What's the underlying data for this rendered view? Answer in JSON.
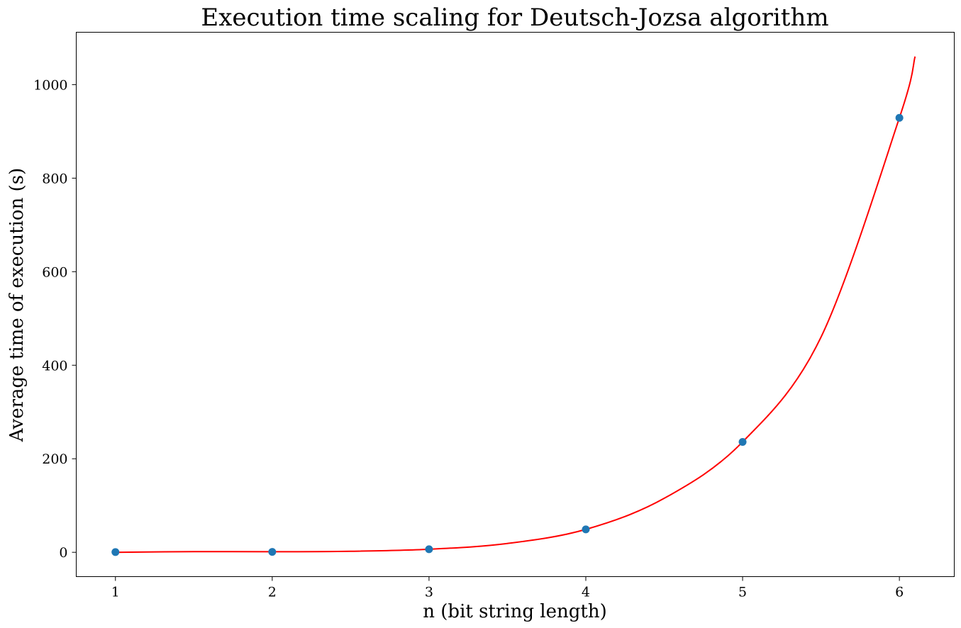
{
  "chart_data": {
    "type": "scatter",
    "title": "Execution time scaling for Deutsch-Jozsa algorithm",
    "xlabel": "n (bit string length)",
    "ylabel": "Average time of execution (s)",
    "xlim": [
      0.75,
      6.35
    ],
    "ylim": [
      -52,
      1112
    ],
    "xticks": [
      1,
      2,
      3,
      4,
      5,
      6
    ],
    "yticks": [
      0,
      200,
      400,
      600,
      800,
      1000
    ],
    "grid": false,
    "legend": "none",
    "series": [
      {
        "kind": "scatter",
        "color": "#1f77b4",
        "x": [
          1,
          2,
          3,
          4,
          5,
          6
        ],
        "y": [
          0.5,
          0.8,
          6.5,
          49,
          236,
          929
        ]
      },
      {
        "kind": "fit-line",
        "color": "#ff0000",
        "x": [
          1.0,
          1.5,
          2.0,
          2.5,
          3.0,
          3.5,
          4.0,
          4.5,
          5.0,
          5.5,
          6.0,
          6.1
        ],
        "y": [
          0.0,
          1.5,
          1.2,
          2.2,
          6.5,
          18.9,
          49.0,
          115.4,
          236.0,
          460.0,
          929.0,
          1060.0
        ]
      }
    ]
  }
}
